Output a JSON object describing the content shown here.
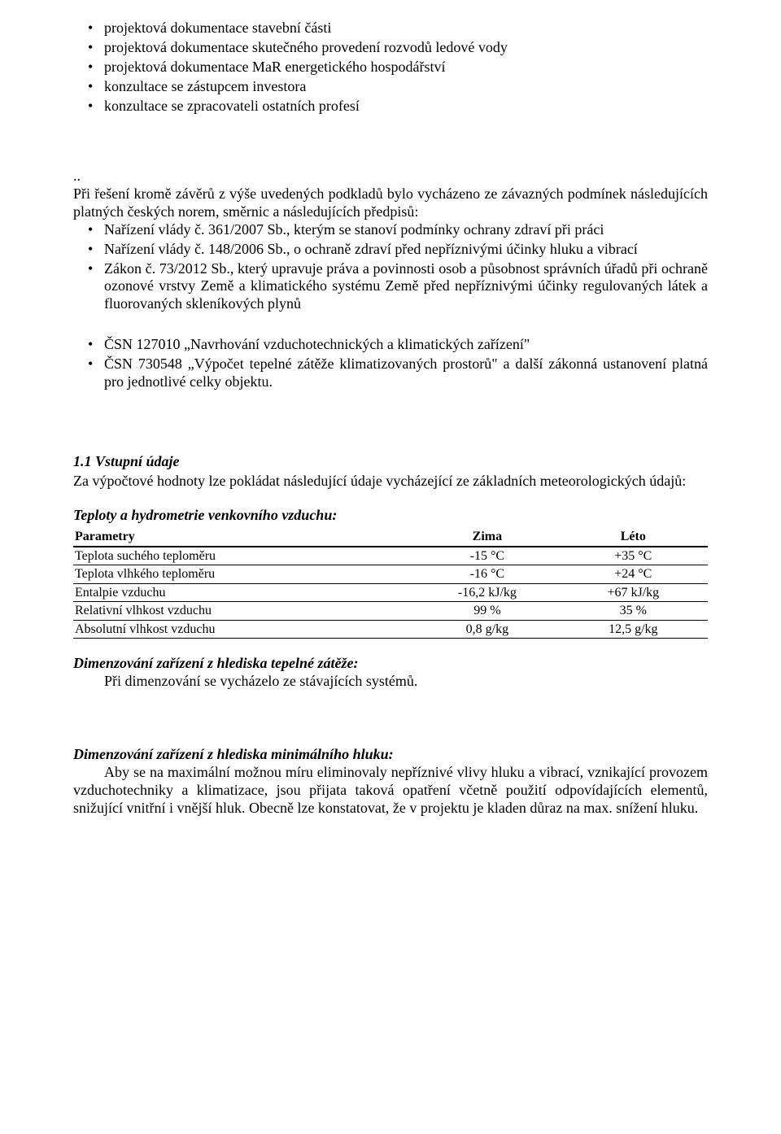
{
  "intro_bullets": [
    "projektová dokumentace stavební části",
    "projektová dokumentace skutečného provedení rozvodů ledové vody",
    "projektová dokumentace MaR energetického hospodářství",
    "konzultace se zástupcem investora",
    "konzultace se zpracovateli ostatních profesí"
  ],
  "dots": "..",
  "regs_intro": "Při řešení kromě závěrů z výše uvedených podkladů bylo vycházeno ze závazných podmínek následujících platných českých norem, směrnic a následujících předpisů:",
  "regs_bullets": [
    "Nařízení vlády č. 361/2007 Sb., kterým se stanoví podmínky ochrany zdraví při práci",
    "Nařízení vlády č. 148/2006 Sb., o ochraně zdraví před nepříznivými účinky hluku a vibrací",
    "Zákon č. 73/2012 Sb., který upravuje práva a povinnosti osob a působnost správních úřadů při ochraně ozonové vrstvy Země a klimatického systému Země před nepříznivými účinky regulovaných látek a fluorovaných skleníkových plynů"
  ],
  "norms_bullets": [
    "ČSN 127010 „Navrhování vzduchotechnických a klimatických zařízení\"",
    "ČSN 730548 „Výpočet tepelné zátěže klimatizovaných prostorů\" a další zákonná ustanovení platná pro jednotlivé celky objektu."
  ],
  "section_1_1_title": "1.1 Vstupní údaje",
  "section_1_1_text": "Za výpočtové hodnoty lze pokládat následující údaje vycházející ze základních meteorologických údajů:",
  "table_heading": "Teploty a hydrometrie venkovního vzduchu:",
  "table": {
    "columns": [
      "Parametry",
      "Zima",
      "Léto"
    ],
    "rows": [
      [
        "Teplota suchého teploměru",
        "-15 °C",
        "+35 °C"
      ],
      [
        "Teplota vlhkého teploměru",
        "-16 °C",
        "+24 °C"
      ],
      [
        "Entalpie vzduchu",
        "-16,2 kJ/kg",
        "+67 kJ/kg"
      ],
      [
        "Relativní vlhkost vzduchu",
        "99 %",
        "35 %"
      ],
      [
        "Absolutní vlhkost vzduchu",
        "0,8 g/kg",
        "12,5 g/kg"
      ]
    ],
    "col_widths": [
      "54%",
      "23%",
      "23%"
    ]
  },
  "heat_heading": "Dimenzování zařízení z hlediska tepelné zátěže:",
  "heat_text": "Při dimenzování se vycházelo ze stávajících systémů.",
  "noise_heading": "Dimenzování zařízení z hlediska minimálního hluku:",
  "noise_text": "Aby se na maximální možnou míru eliminovaly nepříznivé vlivy hluku a vibrací, vznikající provozem vzduchotechniky a klimatizace, jsou přijata taková opatření včetně použití odpovídajících elementů, snižující vnitřní i vnější hluk. Obecně lze konstatovat, že v projektu je kladen důraz na max. snížení hluku."
}
